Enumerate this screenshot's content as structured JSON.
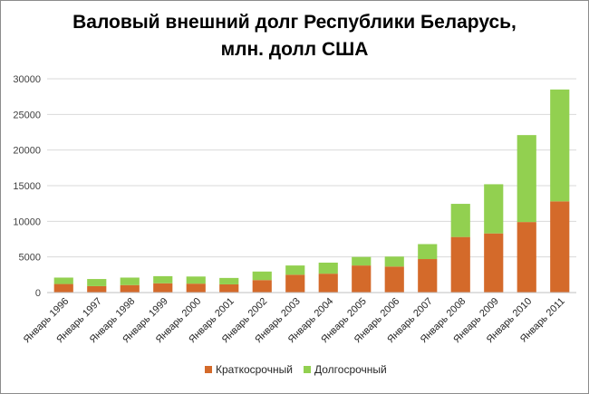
{
  "chart_data": {
    "type": "bar",
    "stacked": true,
    "title": [
      "Валовый внешний долг Республики Беларусь,",
      "млн. долл США"
    ],
    "categories": [
      "Январь 1996",
      "Январь 1997",
      "Январь 1998",
      "Январь 1999",
      "Январь 2000",
      "Январь 2001",
      "Январь 2002",
      "Январь 2003",
      "Январь 2004",
      "Январь 2005",
      "Январь 2006",
      "Январь 2007",
      "Январь 2008",
      "Январь 2009",
      "Январь 2010",
      "Январь 2011"
    ],
    "series": [
      {
        "name": "Краткосрочный",
        "color": "#d46a2a",
        "values": [
          1200,
          900,
          1050,
          1300,
          1250,
          1150,
          1750,
          2500,
          2650,
          3800,
          3650,
          4700,
          7800,
          8300,
          9900,
          12800
        ]
      },
      {
        "name": "Долгосрочный",
        "color": "#92d050",
        "values": [
          900,
          1000,
          1050,
          1000,
          1000,
          900,
          1200,
          1300,
          1550,
          1200,
          1400,
          2100,
          4650,
          6900,
          12200,
          15700
        ]
      }
    ],
    "ylim": [
      0,
      30000
    ],
    "yticks": [
      0,
      5000,
      10000,
      15000,
      20000,
      25000,
      30000
    ],
    "gridlines": true,
    "legend_position": "bottom"
  }
}
